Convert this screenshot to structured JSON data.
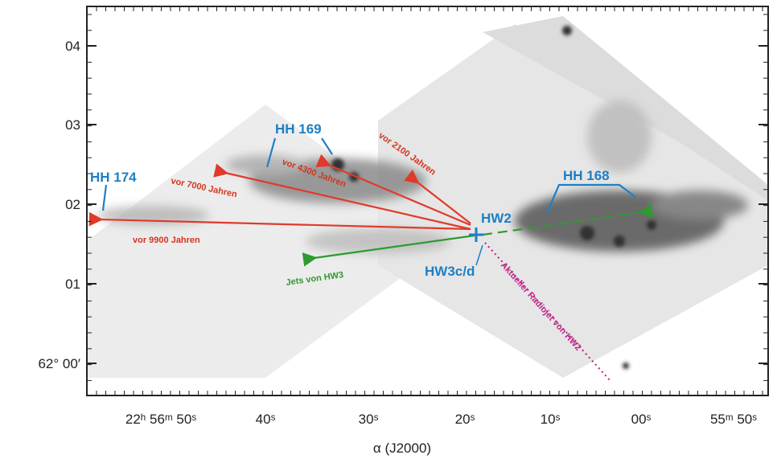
{
  "axes": {
    "y_labels": [
      "04",
      "03",
      "02",
      "01",
      "62° 00′"
    ],
    "x_labels": [
      "22ʰ 56ᵐ 50ˢ",
      "40ˢ",
      "30ˢ",
      "20ˢ",
      "10ˢ",
      "00ˢ",
      "55ᵐ 50ˢ"
    ],
    "x_title": "α (J2000)"
  },
  "objects": {
    "hh174": "HH 174",
    "hh169": "HH 169",
    "hh168": "HH 168",
    "hw2": "HW2",
    "hw3": "HW3c/d"
  },
  "jets": {
    "age_9900": "vor 9900 Jahren",
    "age_7000": "vor 7000 Jahren",
    "age_4300": "vor 4300 Jahren",
    "age_2100": "vor 2100 Jahren",
    "hw3_jets": "Jets von HW3",
    "radiojet": "Aktueller Radiojet von HW2"
  }
}
